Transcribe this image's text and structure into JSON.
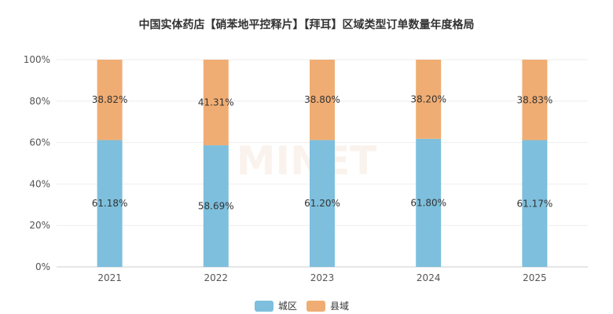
{
  "chart_data": {
    "type": "bar",
    "stacked": true,
    "title": "中国实体药店【硝苯地平控释片】【拜耳】区域类型订单数量年度格局",
    "categories": [
      "2021",
      "2022",
      "2023",
      "2024",
      "2025"
    ],
    "series": [
      {
        "name": "城区",
        "color": "#7dbfdd",
        "values": [
          61.18,
          58.69,
          61.2,
          61.8,
          61.17
        ],
        "labels": [
          "61.18%",
          "58.69%",
          "61.20%",
          "61.80%",
          "61.17%"
        ]
      },
      {
        "name": "县域",
        "color": "#f0ad73",
        "values": [
          38.82,
          41.31,
          38.8,
          38.2,
          38.83
        ],
        "labels": [
          "38.82%",
          "41.31%",
          "38.80%",
          "38.20%",
          "38.83%"
        ]
      }
    ],
    "ylim": [
      0,
      100
    ],
    "yticks": [
      "0%",
      "20%",
      "40%",
      "60%",
      "80%",
      "100%"
    ],
    "grid": true,
    "legend_position": "bottom-center"
  },
  "watermark": "MINET"
}
